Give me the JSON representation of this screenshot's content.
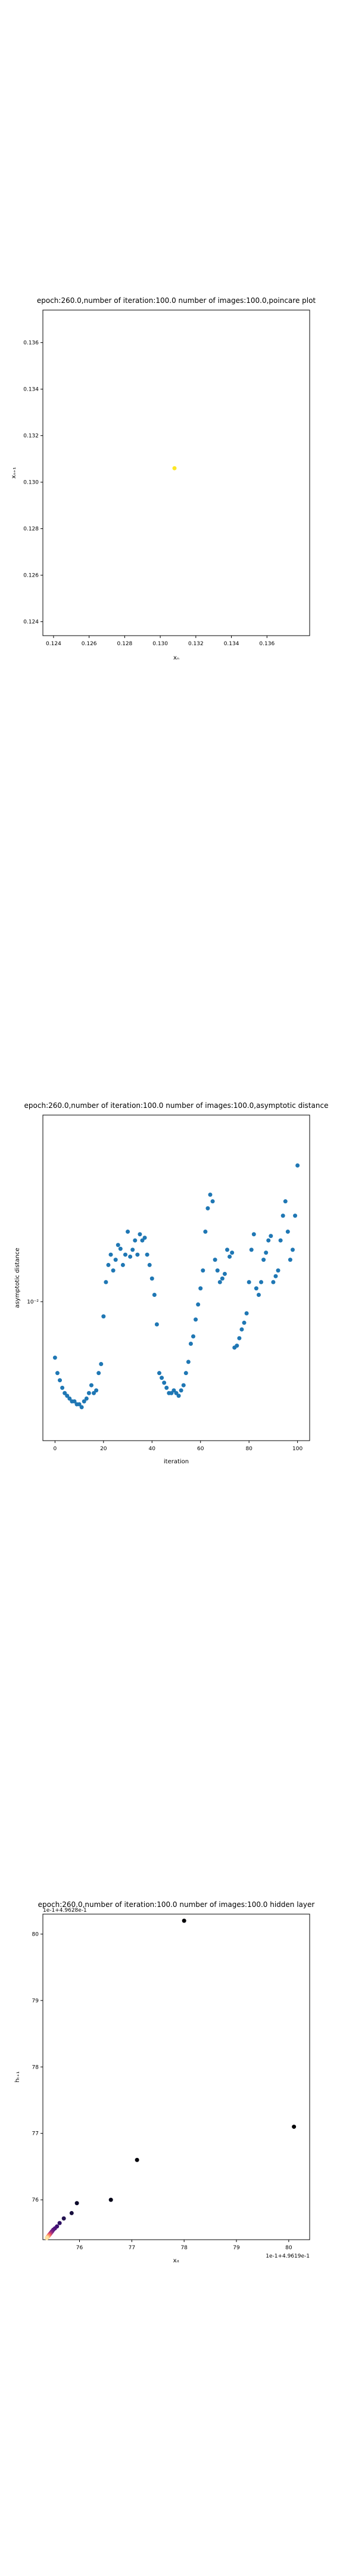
{
  "chart_data": [
    {
      "type": "scatter",
      "title": "epoch:260.0,number of iteration:100.0 number of images:100.0,poincare plot",
      "xlabel": "xₙ",
      "ylabel": "xₙ₊₁",
      "xlim": [
        0.1234,
        0.1384
      ],
      "ylim": [
        0.1234,
        0.1374
      ],
      "xticks": [
        0.124,
        0.126,
        0.128,
        0.13,
        0.132,
        0.134,
        0.136
      ],
      "xtick_labels": [
        "0.124",
        "0.126",
        "0.128",
        "0.130",
        "0.132",
        "0.134",
        "0.136"
      ],
      "yticks": [
        0.124,
        0.126,
        0.128,
        0.13,
        0.132,
        0.134,
        0.136
      ],
      "ytick_labels": [
        "0.124",
        "0.126",
        "0.128",
        "0.130",
        "0.132",
        "0.134",
        "0.136"
      ],
      "grid": false,
      "points": [
        {
          "x": 0.1308,
          "y": 0.1306
        }
      ],
      "color": "#fde725"
    },
    {
      "type": "scatter",
      "title": "epoch:260.0,number of iteration:100.0  number of images:100.0,asymptotic distance",
      "xlabel": "iteration",
      "ylabel": "asymptotic distance",
      "yscale": "log",
      "xlim": [
        -5,
        105
      ],
      "ylim": [
        0.0037,
        0.038
      ],
      "xticks": [
        0,
        20,
        40,
        60,
        80,
        100
      ],
      "xtick_labels": [
        "0",
        "20",
        "40",
        "60",
        "80",
        "100"
      ],
      "yticks": [
        0.01
      ],
      "ytick_labels": [
        "10⁻²"
      ],
      "grid": false,
      "color": "#1f77b4",
      "series": [
        {
          "x": [
            0,
            1,
            2,
            3,
            4,
            5,
            6,
            7,
            8,
            9,
            10,
            11,
            12,
            13,
            14,
            15,
            16,
            17,
            18,
            19,
            20,
            21,
            22,
            23,
            24,
            25,
            26,
            27,
            28,
            29,
            30,
            31,
            32,
            33,
            34,
            35,
            36,
            37,
            38,
            39,
            40,
            41,
            42,
            43,
            44,
            45,
            46,
            47,
            48,
            49,
            50,
            51,
            52,
            53,
            54,
            55,
            56,
            57,
            58,
            59,
            60,
            61,
            62,
            63,
            64,
            65,
            66,
            67,
            68,
            69,
            70,
            71,
            72,
            73,
            74,
            75,
            76,
            77,
            78,
            79,
            80,
            81,
            82,
            83,
            84,
            85,
            86,
            87,
            88,
            89,
            90,
            91,
            92,
            93,
            94,
            95,
            96,
            97,
            98,
            99,
            100
          ],
          "y": [
            0.0067,
            0.006,
            0.0057,
            0.0054,
            0.0052,
            0.0051,
            0.005,
            0.0049,
            0.0049,
            0.0048,
            0.0048,
            0.0047,
            0.0049,
            0.005,
            0.0052,
            0.0055,
            0.0052,
            0.0053,
            0.006,
            0.0064,
            0.009,
            0.0115,
            0.013,
            0.014,
            0.0125,
            0.0135,
            0.015,
            0.0146,
            0.013,
            0.014,
            0.0165,
            0.0138,
            0.0145,
            0.0155,
            0.014,
            0.0162,
            0.0155,
            0.0158,
            0.014,
            0.013,
            0.0118,
            0.0105,
            0.0085,
            0.006,
            0.0058,
            0.0056,
            0.0054,
            0.0052,
            0.0052,
            0.0053,
            0.0052,
            0.0051,
            0.0053,
            0.0055,
            0.006,
            0.0065,
            0.0074,
            0.0078,
            0.0088,
            0.0098,
            0.011,
            0.0125,
            0.0165,
            0.0195,
            0.0215,
            0.0205,
            0.0135,
            0.0125,
            0.0115,
            0.0118,
            0.0122,
            0.0145,
            0.0138,
            0.0142,
            0.0072,
            0.0073,
            0.0077,
            0.0082,
            0.0086,
            0.0092,
            0.0115,
            0.0145,
            0.0162,
            0.011,
            0.0105,
            0.0115,
            0.0135,
            0.0142,
            0.0155,
            0.016,
            0.0115,
            0.012,
            0.0125,
            0.0155,
            0.0185,
            0.0205,
            0.0165,
            0.0135,
            0.0145,
            0.0185,
            0.0265
          ]
        }
      ]
    },
    {
      "type": "scatter",
      "title": "epoch:260.0,number of iteration:100.0  number of images:100.0 hidden layer",
      "xlabel": "xᵢₜ",
      "ylabel": "hₜ₊₁",
      "xlim": [
        75.3,
        80.4
      ],
      "ylim": [
        75.4,
        80.3
      ],
      "xticks": [
        76,
        77,
        78,
        79,
        80
      ],
      "xtick_labels": [
        "76",
        "77",
        "78",
        "79",
        "80"
      ],
      "yticks": [
        76,
        77,
        78,
        79,
        80
      ],
      "ytick_labels": [
        "76",
        "77",
        "78",
        "79",
        "80"
      ],
      "offset_x": "1e-1+4.9619e-1",
      "offset_y": "1e-1+4.9628e-1",
      "grid": false,
      "points": [
        {
          "x": 78.0,
          "y": 80.2,
          "c": "#000004"
        },
        {
          "x": 80.1,
          "y": 77.1,
          "c": "#000004"
        },
        {
          "x": 77.1,
          "y": 76.6,
          "c": "#02020b"
        },
        {
          "x": 76.6,
          "y": 76.0,
          "c": "#050417"
        },
        {
          "x": 75.95,
          "y": 75.95,
          "c": "#0d0a2b"
        },
        {
          "x": 75.85,
          "y": 75.8,
          "c": "#170f3e"
        },
        {
          "x": 75.7,
          "y": 75.72,
          "c": "#221150"
        },
        {
          "x": 75.62,
          "y": 75.65,
          "c": "#2f1163"
        },
        {
          "x": 75.57,
          "y": 75.6,
          "c": "#3d0f71"
        },
        {
          "x": 75.53,
          "y": 75.57,
          "c": "#4a1079"
        },
        {
          "x": 75.5,
          "y": 75.55,
          "c": "#57157e"
        },
        {
          "x": 75.48,
          "y": 75.53,
          "c": "#641a80"
        },
        {
          "x": 75.47,
          "y": 75.52,
          "c": "#721f81"
        },
        {
          "x": 75.46,
          "y": 75.51,
          "c": "#7e2482"
        },
        {
          "x": 75.45,
          "y": 75.5,
          "c": "#8c2981"
        },
        {
          "x": 75.445,
          "y": 75.495,
          "c": "#9a2e80"
        },
        {
          "x": 75.44,
          "y": 75.49,
          "c": "#a8327d"
        },
        {
          "x": 75.435,
          "y": 75.485,
          "c": "#b73779"
        },
        {
          "x": 75.43,
          "y": 75.48,
          "c": "#c43c75"
        },
        {
          "x": 75.425,
          "y": 75.475,
          "c": "#d3436e"
        },
        {
          "x": 75.42,
          "y": 75.47,
          "c": "#e04c67"
        },
        {
          "x": 75.415,
          "y": 75.465,
          "c": "#eb5760"
        },
        {
          "x": 75.41,
          "y": 75.46,
          "c": "#f4695c"
        },
        {
          "x": 75.405,
          "y": 75.455,
          "c": "#f8765c"
        },
        {
          "x": 75.4,
          "y": 75.45,
          "c": "#fb8861"
        },
        {
          "x": 75.395,
          "y": 75.445,
          "c": "#fd9a6a"
        },
        {
          "x": 75.39,
          "y": 75.44,
          "c": "#feac76"
        },
        {
          "x": 75.385,
          "y": 75.435,
          "c": "#febe84"
        },
        {
          "x": 75.38,
          "y": 75.43,
          "c": "#fecf92"
        },
        {
          "x": 75.375,
          "y": 75.425,
          "c": "#fde2a3"
        }
      ]
    }
  ]
}
